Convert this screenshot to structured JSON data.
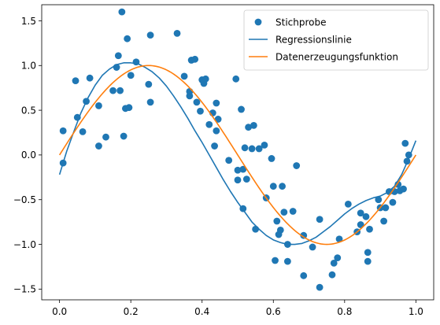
{
  "chart_data": {
    "type": "scatter",
    "xlim": [
      -0.05,
      1.05
    ],
    "ylim": [
      -1.62,
      1.68
    ],
    "xticks": [
      0.0,
      0.2,
      0.4,
      0.6,
      0.8,
      1.0
    ],
    "xtick_labels": [
      "0.0",
      "0.2",
      "0.4",
      "0.6",
      "0.8",
      "1.0"
    ],
    "yticks": [
      -1.5,
      -1.0,
      -0.5,
      0.0,
      0.5,
      1.0,
      1.5
    ],
    "ytick_labels": [
      "−1.5",
      "−1.0",
      "−0.5",
      "0.0",
      "0.5",
      "1.0",
      "1.5"
    ],
    "grid": false,
    "legend_position": "top-right",
    "series": [
      {
        "name": "Stichprobe",
        "kind": "scatter",
        "color": "#1f77b4",
        "points": [
          [
            0.01,
            -0.09
          ],
          [
            0.01,
            0.27
          ],
          [
            0.045,
            0.83
          ],
          [
            0.05,
            0.42
          ],
          [
            0.065,
            0.26
          ],
          [
            0.075,
            0.6
          ],
          [
            0.085,
            0.86
          ],
          [
            0.11,
            0.55
          ],
          [
            0.11,
            0.1
          ],
          [
            0.13,
            0.2
          ],
          [
            0.15,
            0.72
          ],
          [
            0.16,
            0.98
          ],
          [
            0.165,
            1.11
          ],
          [
            0.17,
            0.72
          ],
          [
            0.175,
            1.6
          ],
          [
            0.18,
            0.21
          ],
          [
            0.185,
            0.52
          ],
          [
            0.19,
            1.3
          ],
          [
            0.195,
            0.53
          ],
          [
            0.2,
            0.89
          ],
          [
            0.215,
            1.04
          ],
          [
            0.25,
            0.79
          ],
          [
            0.255,
            0.59
          ],
          [
            0.255,
            1.34
          ],
          [
            0.33,
            1.36
          ],
          [
            0.35,
            0.88
          ],
          [
            0.365,
            0.66
          ],
          [
            0.365,
            0.71
          ],
          [
            0.37,
            1.06
          ],
          [
            0.38,
            1.07
          ],
          [
            0.385,
            0.59
          ],
          [
            0.395,
            0.49
          ],
          [
            0.4,
            0.84
          ],
          [
            0.405,
            0.8
          ],
          [
            0.41,
            0.85
          ],
          [
            0.42,
            0.34
          ],
          [
            0.43,
            0.47
          ],
          [
            0.435,
            0.1
          ],
          [
            0.44,
            0.58
          ],
          [
            0.44,
            0.27
          ],
          [
            0.445,
            0.4
          ],
          [
            0.475,
            -0.06
          ],
          [
            0.495,
            0.85
          ],
          [
            0.5,
            -0.17
          ],
          [
            0.5,
            -0.28
          ],
          [
            0.51,
            0.51
          ],
          [
            0.515,
            -0.16
          ],
          [
            0.515,
            -0.6
          ],
          [
            0.52,
            0.08
          ],
          [
            0.525,
            -0.27
          ],
          [
            0.53,
            0.31
          ],
          [
            0.54,
            0.07
          ],
          [
            0.545,
            0.33
          ],
          [
            0.55,
            -0.83
          ],
          [
            0.56,
            0.07
          ],
          [
            0.575,
            0.11
          ],
          [
            0.58,
            -0.48
          ],
          [
            0.595,
            -0.04
          ],
          [
            0.6,
            -0.35
          ],
          [
            0.605,
            -1.18
          ],
          [
            0.61,
            -0.74
          ],
          [
            0.615,
            -0.89
          ],
          [
            0.62,
            -0.84
          ],
          [
            0.625,
            -0.35
          ],
          [
            0.63,
            -0.64
          ],
          [
            0.64,
            -1.0
          ],
          [
            0.64,
            -1.19
          ],
          [
            0.655,
            -0.63
          ],
          [
            0.665,
            -0.12
          ],
          [
            0.685,
            -0.9
          ],
          [
            0.685,
            -1.35
          ],
          [
            0.71,
            -1.03
          ],
          [
            0.73,
            -0.72
          ],
          [
            0.73,
            -1.48
          ],
          [
            0.765,
            -1.34
          ],
          [
            0.77,
            -1.21
          ],
          [
            0.78,
            -1.15
          ],
          [
            0.785,
            -0.94
          ],
          [
            0.81,
            -0.55
          ],
          [
            0.835,
            -0.86
          ],
          [
            0.845,
            -0.65
          ],
          [
            0.845,
            -0.78
          ],
          [
            0.86,
            -0.69
          ],
          [
            0.865,
            -1.09
          ],
          [
            0.865,
            -1.19
          ],
          [
            0.87,
            -0.83
          ],
          [
            0.895,
            -0.5
          ],
          [
            0.9,
            -0.59
          ],
          [
            0.91,
            -0.74
          ],
          [
            0.915,
            -0.59
          ],
          [
            0.925,
            -0.41
          ],
          [
            0.935,
            -0.53
          ],
          [
            0.94,
            -0.41
          ],
          [
            0.95,
            -0.33
          ],
          [
            0.955,
            -0.4
          ],
          [
            0.965,
            -0.38
          ],
          [
            0.97,
            0.13
          ],
          [
            0.975,
            -0.07
          ],
          [
            0.98,
            0.0
          ]
        ]
      },
      {
        "name": "Regressionslinie",
        "kind": "line",
        "color": "#1f77b4",
        "points": [
          [
            0.0,
            -0.22
          ],
          [
            0.02,
            0.04
          ],
          [
            0.04,
            0.26
          ],
          [
            0.06,
            0.47
          ],
          [
            0.08,
            0.64
          ],
          [
            0.1,
            0.78
          ],
          [
            0.12,
            0.89
          ],
          [
            0.14,
            0.96
          ],
          [
            0.16,
            1.01
          ],
          [
            0.18,
            1.03
          ],
          [
            0.2,
            1.03
          ],
          [
            0.22,
            1.02
          ],
          [
            0.24,
            0.98
          ],
          [
            0.26,
            0.93
          ],
          [
            0.28,
            0.86
          ],
          [
            0.3,
            0.77
          ],
          [
            0.32,
            0.66
          ],
          [
            0.34,
            0.54
          ],
          [
            0.36,
            0.41
          ],
          [
            0.38,
            0.27
          ],
          [
            0.4,
            0.14
          ],
          [
            0.42,
            0.0
          ],
          [
            0.44,
            -0.14
          ],
          [
            0.46,
            -0.28
          ],
          [
            0.48,
            -0.41
          ],
          [
            0.5,
            -0.53
          ],
          [
            0.52,
            -0.64
          ],
          [
            0.54,
            -0.75
          ],
          [
            0.56,
            -0.83
          ],
          [
            0.58,
            -0.9
          ],
          [
            0.6,
            -0.95
          ],
          [
            0.62,
            -0.98
          ],
          [
            0.64,
            -1.0
          ],
          [
            0.66,
            -1.0
          ],
          [
            0.68,
            -0.99
          ],
          [
            0.7,
            -0.96
          ],
          [
            0.72,
            -0.92
          ],
          [
            0.74,
            -0.86
          ],
          [
            0.76,
            -0.8
          ],
          [
            0.78,
            -0.73
          ],
          [
            0.8,
            -0.66
          ],
          [
            0.82,
            -0.6
          ],
          [
            0.84,
            -0.55
          ],
          [
            0.86,
            -0.51
          ],
          [
            0.88,
            -0.48
          ],
          [
            0.9,
            -0.46
          ],
          [
            0.92,
            -0.42
          ],
          [
            0.94,
            -0.35
          ],
          [
            0.96,
            -0.22
          ],
          [
            0.98,
            -0.04
          ],
          [
            1.0,
            0.16
          ]
        ]
      },
      {
        "name": "Datenerzeugungsfunktion",
        "kind": "function",
        "formula": "sin(2*pi*x)",
        "color": "#ff7f0e",
        "x_range": [
          0,
          1
        ]
      }
    ]
  }
}
